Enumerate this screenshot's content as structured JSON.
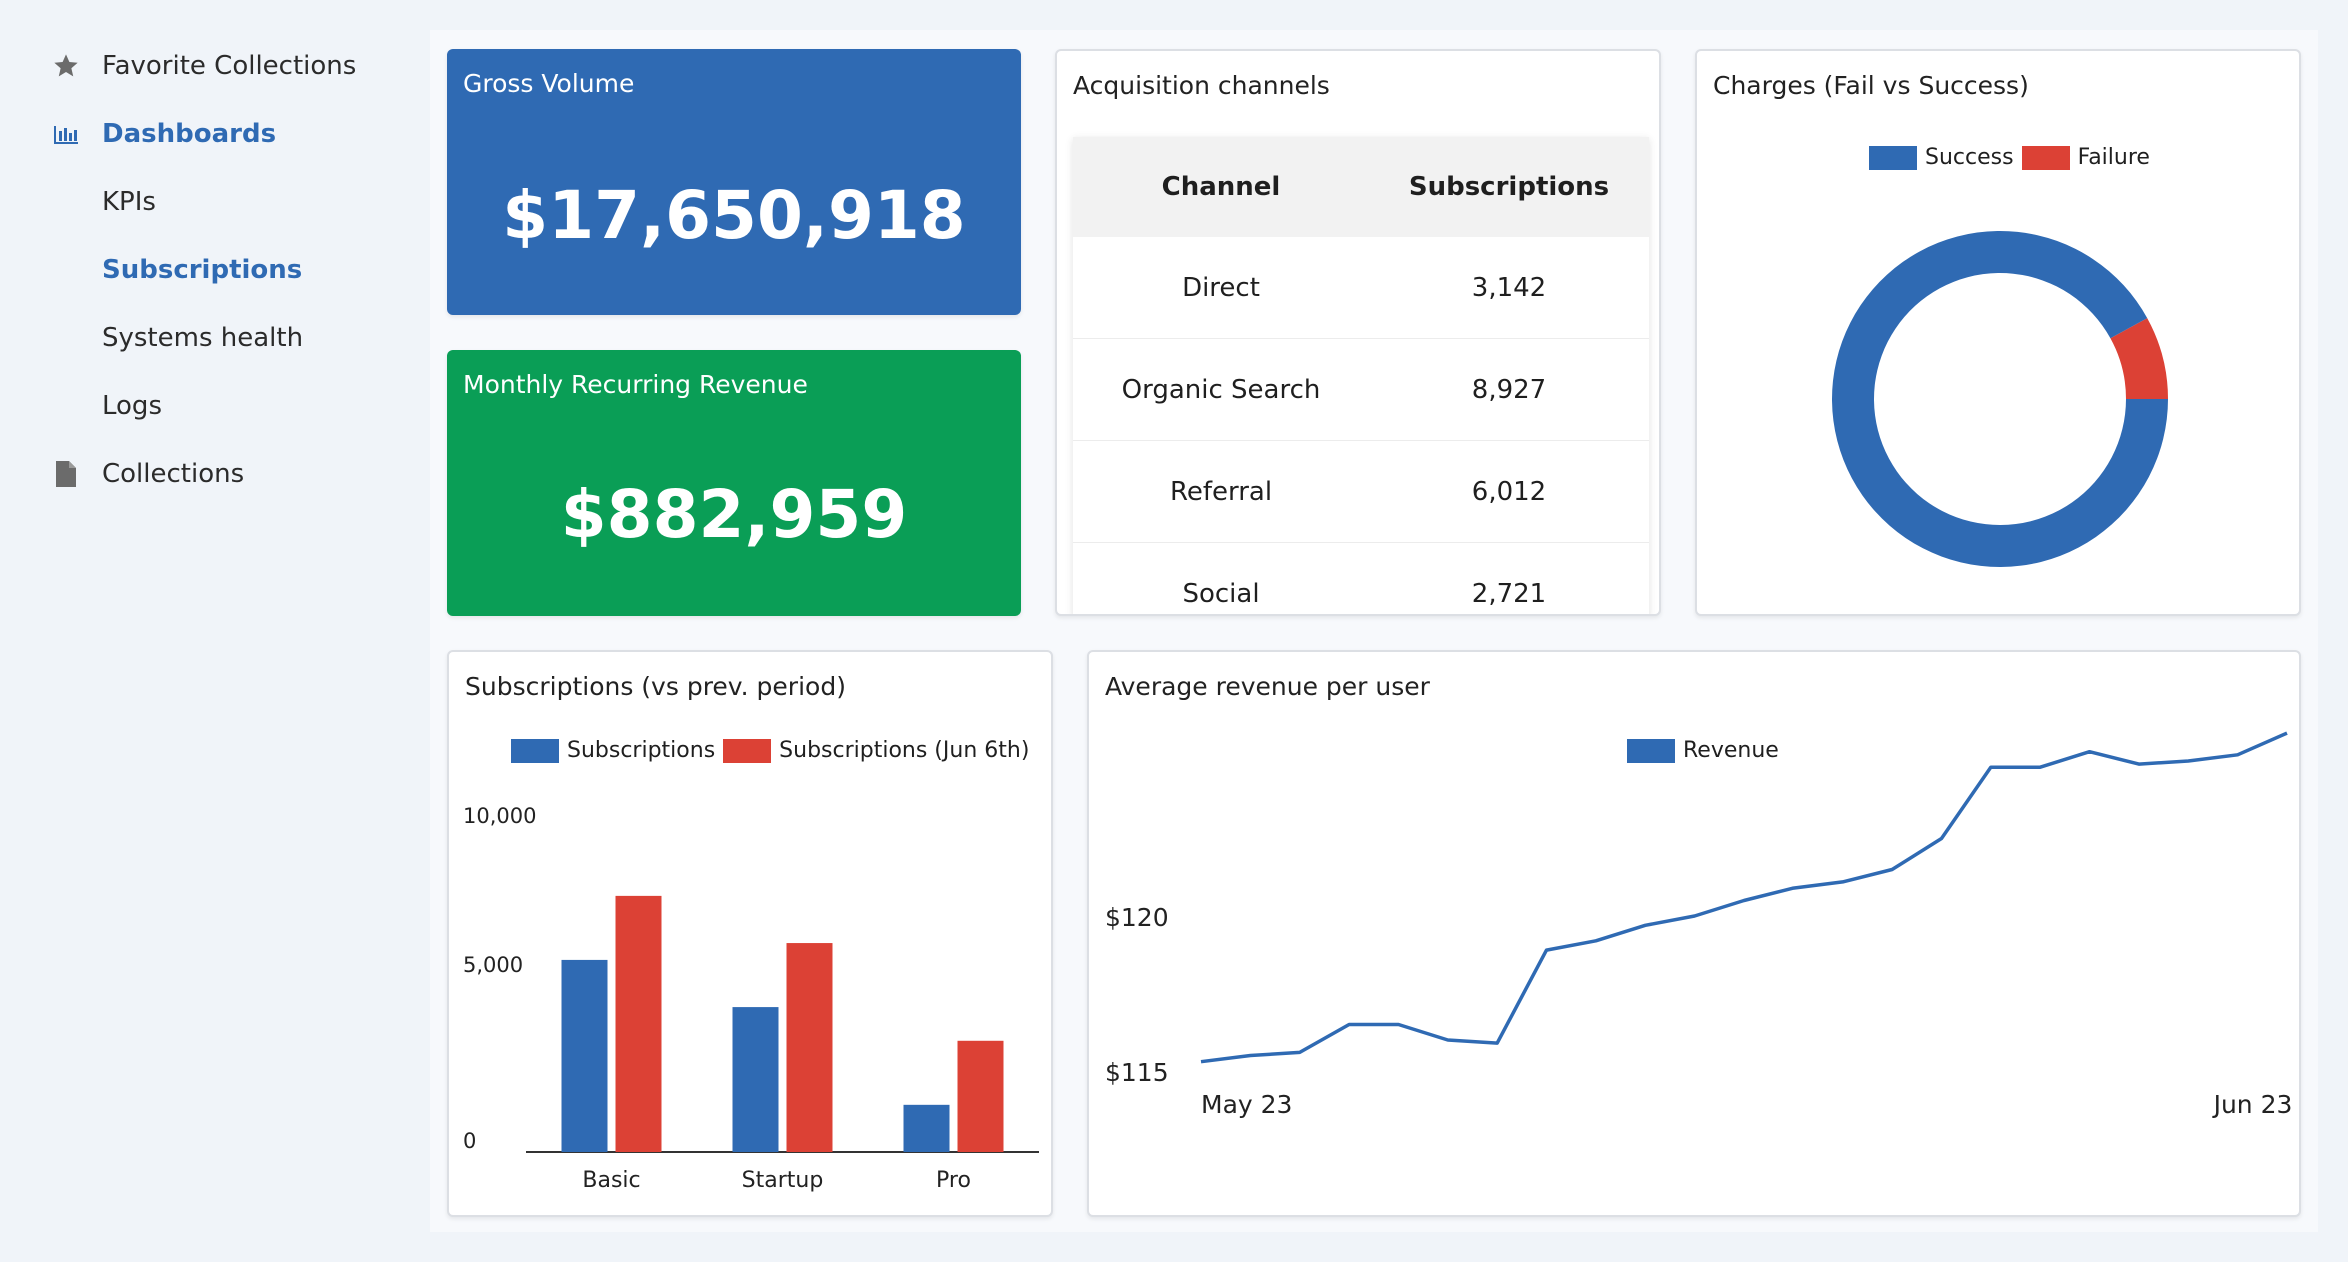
{
  "sidebar": {
    "items": [
      {
        "label": "Favorite Collections",
        "icon": "star-icon"
      },
      {
        "label": "Dashboards",
        "icon": "bar-chart-icon"
      },
      {
        "label": "KPIs"
      },
      {
        "label": "Subscriptions"
      },
      {
        "label": "Systems health"
      },
      {
        "label": "Logs"
      },
      {
        "label": "Collections",
        "icon": "document-icon"
      }
    ]
  },
  "colors": {
    "blue": "#2f6ab3",
    "green": "#0a9e56",
    "red": "#dc4135",
    "active": "#2f6ab3"
  },
  "gross": {
    "title": "Gross Volume",
    "value": "$17,650,918"
  },
  "mrr": {
    "title": "Monthly Recurring Revenue",
    "value": "$882,959"
  },
  "acquisition": {
    "title": "Acquisition channels",
    "headers": [
      "Channel",
      "Subscriptions"
    ],
    "rows": [
      [
        "Direct",
        "3,142"
      ],
      [
        "Organic Search",
        "8,927"
      ],
      [
        "Referral",
        "6,012"
      ],
      [
        "Social",
        "2,721"
      ]
    ]
  },
  "charges": {
    "title": "Charges (Fail vs Success)",
    "legend": [
      "Success",
      "Failure"
    ]
  },
  "subs_chart": {
    "title": "Subscriptions (vs prev. period)",
    "legend": [
      "Subscriptions",
      "Subscriptions (Jun 6th)"
    ]
  },
  "arpu": {
    "title": "Average revenue per user",
    "legend": [
      "Revenue"
    ]
  },
  "chart_data": [
    {
      "type": "pie",
      "title": "Charges (Fail vs Success)",
      "donut": true,
      "labels": [
        "Success",
        "Failure"
      ],
      "values": [
        92,
        8
      ],
      "colors": [
        "#2f6ab3",
        "#dc4135"
      ],
      "legend": "top"
    },
    {
      "type": "bar",
      "title": "Subscriptions (vs prev. period)",
      "categories": [
        "Basic",
        "Startup",
        "Pro"
      ],
      "series": [
        {
          "name": "Subscriptions",
          "values": [
            5700,
            4300,
            1400
          ],
          "color": "#2f6ab3"
        },
        {
          "name": "Subscriptions (Jun 6th)",
          "values": [
            7600,
            6200,
            3300
          ],
          "color": "#dc4135"
        }
      ],
      "yticks": [
        "10,000",
        "5,000",
        "0"
      ],
      "ylim": [
        0,
        10000
      ],
      "legend": "top"
    },
    {
      "type": "line",
      "title": "Average revenue per user",
      "series": [
        {
          "name": "Revenue",
          "color": "#2f6ab3",
          "values": [
            115.3,
            115.5,
            115.6,
            116.5,
            116.5,
            116.0,
            115.9,
            118.9,
            119.2,
            119.7,
            120.0,
            120.5,
            120.9,
            121.1,
            121.5,
            122.5,
            124.8,
            124.8,
            125.3,
            124.9,
            125.0,
            125.2,
            125.9
          ]
        }
      ],
      "xticks": [
        "May 23",
        "Jun 23"
      ],
      "yticks": [
        "$120",
        "$115"
      ],
      "ylim": [
        112.9,
        131.6
      ],
      "legend": "top"
    }
  ]
}
